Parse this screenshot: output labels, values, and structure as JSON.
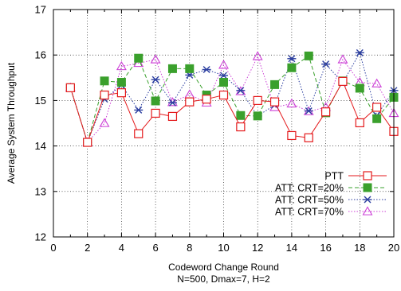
{
  "chart_data": {
    "type": "line",
    "title": "",
    "xlabel": "Codeword Change Round",
    "xlabel2": "N=500, Dmax=7, H=2",
    "ylabel": "Average System Throughput",
    "xlim": [
      0,
      20
    ],
    "ylim": [
      12,
      17
    ],
    "xticks": [
      0,
      2,
      4,
      6,
      8,
      10,
      12,
      14,
      16,
      18,
      20
    ],
    "yticks": [
      12,
      13,
      14,
      15,
      16,
      17
    ],
    "grid": true,
    "legend_position": "bottom-right",
    "x": [
      1,
      2,
      3,
      4,
      5,
      6,
      7,
      8,
      9,
      10,
      11,
      12,
      13,
      14,
      15,
      16,
      17,
      18,
      19,
      20
    ],
    "series": [
      {
        "name": "PTT",
        "color": "#e41a1c",
        "marker": "open-square",
        "line": "solid",
        "values": [
          15.28,
          14.08,
          15.12,
          15.17,
          14.27,
          14.72,
          14.65,
          14.97,
          15.03,
          15.12,
          14.42,
          15.0,
          14.97,
          14.23,
          14.18,
          14.75,
          15.42,
          14.51,
          14.85,
          14.32
        ]
      },
      {
        "name": "ATT: CRT=20%",
        "color": "#3aa02c",
        "marker": "filled-square",
        "line": "dashed",
        "values": [
          15.28,
          14.08,
          15.43,
          15.4,
          15.93,
          14.99,
          15.7,
          15.7,
          15.12,
          15.4,
          14.67,
          14.66,
          15.35,
          15.72,
          15.98,
          14.73,
          15.43,
          15.27,
          14.6,
          15.07
        ]
      },
      {
        "name": "ATT: CRT=50%",
        "color": "#2c3fa0",
        "marker": "star",
        "line": "dotted",
        "values": [
          15.28,
          14.08,
          15.03,
          15.34,
          14.79,
          15.46,
          14.95,
          15.56,
          15.68,
          15.55,
          15.22,
          14.66,
          14.9,
          15.92,
          14.77,
          15.8,
          15.39,
          16.05,
          14.67,
          15.22
        ]
      },
      {
        "name": "ATT: CRT=70%",
        "color": "#cc3fd6",
        "marker": "open-triangle",
        "line": "dotted",
        "values": [
          15.28,
          14.08,
          14.5,
          15.75,
          15.82,
          15.9,
          14.96,
          15.13,
          14.95,
          15.78,
          15.2,
          15.97,
          14.85,
          14.93,
          14.76,
          14.85,
          15.9,
          15.4,
          15.37,
          14.72
        ]
      }
    ]
  }
}
